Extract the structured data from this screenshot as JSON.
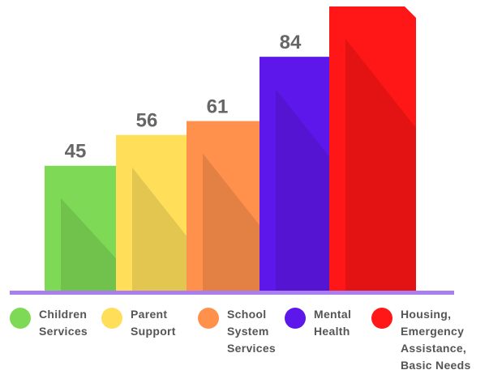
{
  "chart_data": {
    "type": "bar",
    "categories": [
      "Children Services",
      "Parent Support",
      "School System Services",
      "Mental Health",
      "Housing, Emergency Assistance, Basic Needs"
    ],
    "values": [
      45,
      56,
      61,
      84,
      102
    ],
    "value_labels": [
      "45",
      "56",
      "61",
      "84",
      null
    ],
    "colors": [
      "#7ed957",
      "#ffde59",
      "#ff914d",
      "#5e17eb",
      "#ff1616"
    ],
    "legend": "bottom"
  }
}
